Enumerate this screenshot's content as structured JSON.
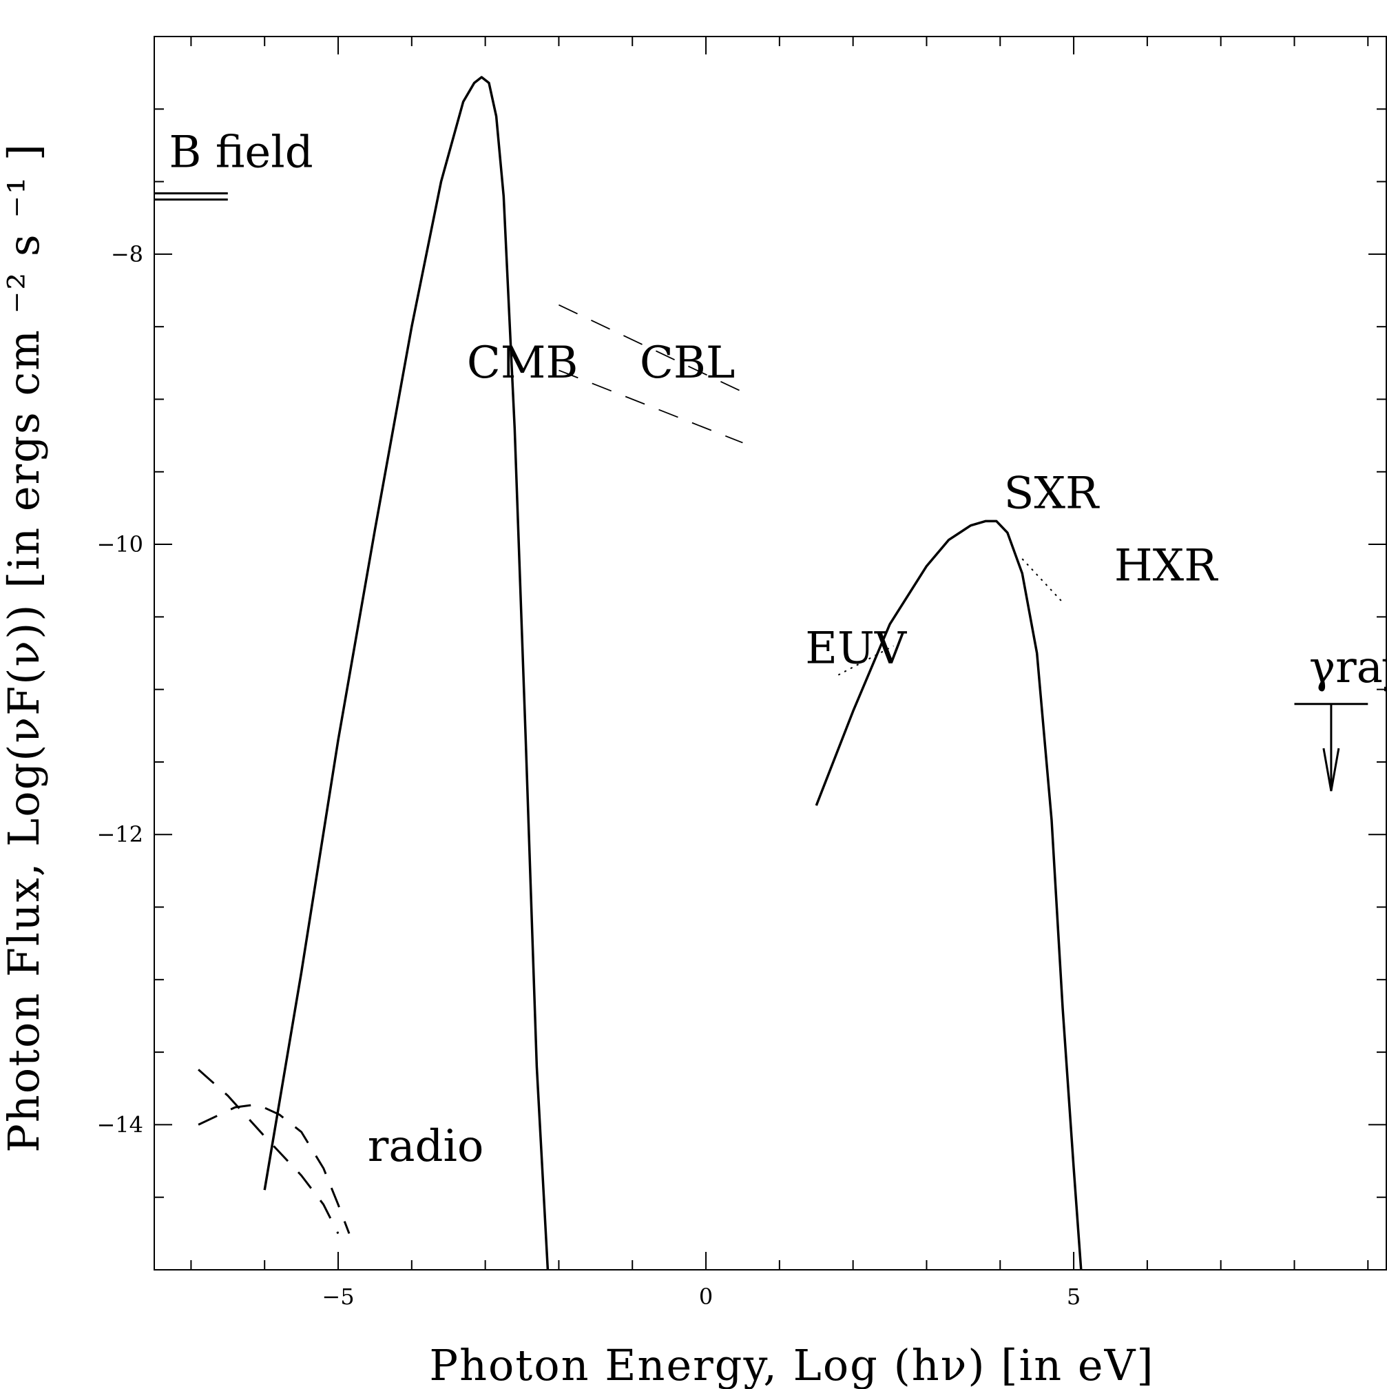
{
  "chart_data": {
    "type": "line",
    "xlabel": "Photon Energy, Log (hν)   [in eV]",
    "ylabel": "Photon Flux, Log(νF(ν))   [in ergs cm ⁻² s ⁻¹ ]",
    "xlim": [
      -7.5,
      9.25
    ],
    "ylim": [
      -15,
      -6.5
    ],
    "xticks": [
      "-5",
      "0",
      "5"
    ],
    "yticks": [
      "-8",
      "-10",
      "-12",
      "-14"
    ],
    "series": [
      {
        "name": "CMB",
        "style": "solid",
        "x": [
          -6.0,
          -5.5,
          -5.0,
          -4.5,
          -4.0,
          -3.6,
          -3.3,
          -3.15,
          -3.05,
          -2.95,
          -2.85,
          -2.75,
          -2.6,
          -2.45,
          -2.3,
          -2.15
        ],
        "y": [
          -14.45,
          -12.95,
          -11.35,
          -9.9,
          -8.5,
          -7.5,
          -6.95,
          -6.82,
          -6.78,
          -6.82,
          -7.05,
          -7.6,
          -9.2,
          -11.35,
          -13.6,
          -15.0
        ]
      },
      {
        "name": "CBL",
        "style": "dashed",
        "x": [
          -2.0,
          0.5
        ],
        "y": [
          -8.35,
          -8.95
        ]
      },
      {
        "name": "CBL",
        "style": "dashed",
        "x": [
          -2.0,
          0.5
        ],
        "y": [
          -8.8,
          -9.3
        ]
      },
      {
        "name": "SXR",
        "style": "solid",
        "x": [
          1.5,
          2.0,
          2.5,
          3.0,
          3.3,
          3.6,
          3.8,
          3.95,
          4.1,
          4.3,
          4.5,
          4.7,
          4.85,
          5.0,
          5.1
        ],
        "y": [
          -11.8,
          -11.15,
          -10.55,
          -10.15,
          -9.97,
          -9.87,
          -9.84,
          -9.84,
          -9.92,
          -10.2,
          -10.75,
          -11.9,
          -13.2,
          -14.3,
          -15.0
        ]
      },
      {
        "name": "EUV",
        "style": "dotted",
        "x": [
          1.8,
          2.55
        ],
        "y": [
          -10.9,
          -10.7
        ]
      },
      {
        "name": "HXR",
        "style": "dotted",
        "x": [
          4.3,
          4.85
        ],
        "y": [
          -10.1,
          -10.4
        ]
      },
      {
        "name": "radio",
        "style": "dashed",
        "x": [
          -6.9,
          -6.5,
          -6.0,
          -5.5,
          -5.2,
          -5.0
        ],
        "y": [
          -13.62,
          -13.8,
          -14.08,
          -14.35,
          -14.55,
          -14.75
        ]
      },
      {
        "name": "radio",
        "style": "dashed",
        "x": [
          -6.9,
          -6.4,
          -6.1,
          -5.8,
          -5.5,
          -5.2,
          -5.0,
          -4.85
        ],
        "y": [
          -14.0,
          -13.88,
          -13.86,
          -13.93,
          -14.05,
          -14.3,
          -14.55,
          -14.75
        ]
      }
    ],
    "limits": [
      {
        "name": "B field",
        "x": [
          -7.5,
          -6.5
        ],
        "y": -7.6,
        "kind": "double-line"
      },
      {
        "name": "γrays",
        "x": [
          8.0,
          9.0
        ],
        "y": -11.1,
        "kind": "upper-limit",
        "arrow_to": -11.7
      }
    ],
    "annotations": [
      {
        "text": "B field",
        "x": -7.3,
        "y": -7.4
      },
      {
        "text": "CMB",
        "x": -3.25,
        "y": -8.85
      },
      {
        "text": "CBL",
        "x": -0.9,
        "y": -8.85
      },
      {
        "text": "SXR",
        "x": 4.05,
        "y": -9.75
      },
      {
        "text": "HXR",
        "x": 5.55,
        "y": -10.25
      },
      {
        "text": "EUV",
        "x": 1.35,
        "y": -10.82
      },
      {
        "text": "γrays",
        "x": 8.2,
        "y": -10.95
      },
      {
        "text": "radio",
        "x": -4.6,
        "y": -14.25
      }
    ]
  }
}
